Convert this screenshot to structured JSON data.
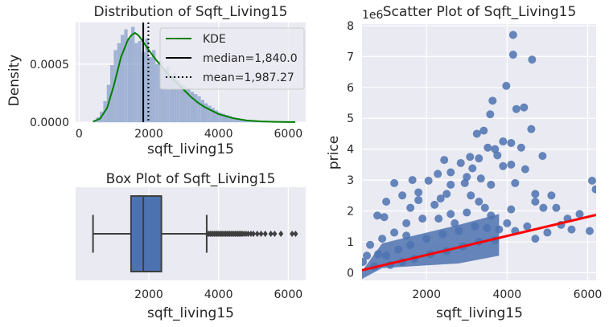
{
  "chart_data": [
    {
      "type": "histogram",
      "title": "Distribution of Sqft_Living15",
      "xlabel": "sqft_living15",
      "ylabel": "Density",
      "xlim": [
        -100,
        6500
      ],
      "ylim": [
        0,
        0.00086
      ],
      "x_ticks": [
        0,
        2000,
        4000,
        6000
      ],
      "x_tick_labels": [
        "0",
        "2000",
        "4000",
        "6000"
      ],
      "y_ticks": [
        0,
        0.0005
      ],
      "y_tick_labels": [
        "0.0000",
        "0.0005"
      ],
      "grid": true,
      "legend_position": "upper-right",
      "histogram": {
        "bin_start": 400,
        "bin_width": 100,
        "densities": [
          1e-05,
          4e-05,
          9e-05,
          0.00018,
          0.00032,
          0.00049,
          0.00062,
          0.00068,
          0.00075,
          0.0008,
          0.00072,
          0.00082,
          0.00068,
          0.0007,
          0.0006,
          0.00072,
          0.00056,
          0.00062,
          0.0005,
          0.00052,
          0.00046,
          0.00048,
          0.0004,
          0.00042,
          0.00036,
          0.00033,
          0.00031,
          0.00029,
          0.00026,
          0.00024,
          0.00022,
          0.00019,
          0.00016,
          0.00014,
          0.00012,
          0.0001,
          8e-05,
          7e-05,
          6e-05,
          5e-05,
          4e-05,
          3e-05,
          2.5e-05,
          2e-05,
          1.5e-05,
          1.2e-05,
          1e-05,
          8e-06,
          6e-06,
          5e-06
        ]
      },
      "kde": {
        "name": "KDE",
        "color": "#008000",
        "x": [
          400,
          600,
          800,
          1000,
          1200,
          1400,
          1500,
          1600,
          1700,
          1800,
          2000,
          2200,
          2400,
          2600,
          2800,
          3000,
          3200,
          3400,
          3600,
          3800,
          4000,
          4400,
          4800,
          5200,
          5600,
          6000,
          6200
        ],
        "y": [
          5e-06,
          3e-05,
          0.00012,
          0.00032,
          0.00056,
          0.00071,
          0.00075,
          0.00077,
          0.00075,
          0.00071,
          0.00062,
          0.00054,
          0.00047,
          0.0004,
          0.00034,
          0.00028,
          0.00022,
          0.00017,
          0.00013,
          0.0001,
          7e-05,
          3.5e-05,
          1.5e-05,
          6e-06,
          3e-06,
          1e-06,
          5e-07
        ]
      },
      "median": {
        "name": "median=1,840.0",
        "value": 1840,
        "color": "#000000"
      },
      "mean": {
        "name": "mean=1,987.27",
        "value": 1987.27,
        "color": "#000000"
      }
    },
    {
      "type": "box",
      "title": "Box Plot of Sqft_Living15",
      "xlabel": "sqft_living15",
      "xlim": [
        -100,
        6500
      ],
      "x_ticks": [
        2000,
        4000,
        6000
      ],
      "x_tick_labels": [
        "2000",
        "4000",
        "6000"
      ],
      "grid": true,
      "box_color": "#4c72b0",
      "whisker_low": 399,
      "q1": 1490,
      "median": 1840,
      "q3": 2360,
      "whisker_high": 3660,
      "outliers": [
        3680,
        3720,
        3760,
        3800,
        3840,
        3880,
        3920,
        3960,
        4000,
        4040,
        4080,
        4120,
        4160,
        4200,
        4240,
        4280,
        4320,
        4360,
        4400,
        4440,
        4480,
        4520,
        4560,
        4600,
        4640,
        4680,
        4730,
        4790,
        4850,
        4930,
        5000,
        5110,
        5220,
        5340,
        5500,
        5610,
        5790,
        6110,
        6210
      ]
    },
    {
      "type": "scatter",
      "title": "Scatter Plot of Sqft_Living15",
      "xlabel": "sqft_living15",
      "ylabel": "price",
      "offset_label": "1e6",
      "xlim": [
        399,
        6210
      ],
      "ylim": [
        -0.25,
        8.05
      ],
      "x_ticks": [
        2000,
        4000,
        6000
      ],
      "x_tick_labels": [
        "2000",
        "4000",
        "6000"
      ],
      "y_ticks": [
        0,
        1,
        2,
        3,
        4,
        5,
        6,
        7,
        8
      ],
      "y_tick_labels": [
        "0",
        "1",
        "2",
        "3",
        "4",
        "5",
        "6",
        "7",
        "8"
      ],
      "grid": true,
      "point_color": "#4c72b0",
      "points": [
        [
          4150,
          7.7
        ],
        [
          4150,
          7.06
        ],
        [
          4620,
          6.9
        ],
        [
          3980,
          6.05
        ],
        [
          3640,
          5.57
        ],
        [
          4420,
          5.35
        ],
        [
          4230,
          5.3
        ],
        [
          3580,
          5.13
        ],
        [
          4600,
          4.65
        ],
        [
          3250,
          4.5
        ],
        [
          3420,
          4.6
        ],
        [
          3900,
          4.25
        ],
        [
          3520,
          4.05
        ],
        [
          4100,
          4.2
        ],
        [
          3700,
          4.0
        ],
        [
          4350,
          4.05
        ],
        [
          4880,
          3.78
        ],
        [
          3080,
          3.75
        ],
        [
          3300,
          3.7
        ],
        [
          2440,
          3.65
        ],
        [
          3760,
          3.8
        ],
        [
          2850,
          3.55
        ],
        [
          3140,
          3.38
        ],
        [
          3900,
          3.45
        ],
        [
          4450,
          3.35
        ],
        [
          2600,
          3.25
        ],
        [
          2280,
          3.2
        ],
        [
          4100,
          3.5
        ],
        [
          3000,
          3.1
        ],
        [
          1650,
          3.0
        ],
        [
          2050,
          2.98
        ],
        [
          1200,
          2.9
        ],
        [
          6110,
          2.98
        ],
        [
          6200,
          2.7
        ],
        [
          5100,
          2.5
        ],
        [
          4700,
          2.55
        ],
        [
          4200,
          2.9
        ],
        [
          3600,
          2.85
        ],
        [
          2600,
          2.85
        ],
        [
          1800,
          2.6
        ],
        [
          1400,
          2.5
        ],
        [
          1000,
          2.3
        ],
        [
          5220,
          2.1
        ],
        [
          5800,
          1.9
        ],
        [
          5500,
          1.75
        ],
        [
          4900,
          2.1
        ],
        [
          4700,
          2.3
        ],
        [
          3300,
          2.3
        ],
        [
          2500,
          2.55
        ],
        [
          2200,
          2.2
        ],
        [
          1600,
          2.1
        ],
        [
          950,
          1.8
        ],
        [
          780,
          1.85
        ],
        [
          5340,
          1.55
        ],
        [
          6050,
          1.35
        ],
        [
          4700,
          1.1
        ],
        [
          4000,
          1.6
        ],
        [
          3600,
          1.85
        ],
        [
          3000,
          1.95
        ],
        [
          2700,
          1.6
        ],
        [
          2300,
          1.75
        ],
        [
          1900,
          1.75
        ],
        [
          1500,
          1.6
        ],
        [
          1200,
          1.3
        ],
        [
          900,
          1.1
        ],
        [
          600,
          0.9
        ],
        [
          420,
          0.35
        ],
        [
          520,
          0.55
        ],
        [
          800,
          0.6
        ],
        [
          1000,
          0.55
        ],
        [
          1300,
          0.75
        ],
        [
          1600,
          0.9
        ],
        [
          2000,
          1.1
        ],
        [
          2400,
          1.25
        ],
        [
          2800,
          1.35
        ],
        [
          3200,
          1.5
        ],
        [
          3500,
          1.45
        ],
        [
          3800,
          1.4
        ],
        [
          4200,
          1.35
        ],
        [
          4500,
          1.5
        ],
        [
          5000,
          1.3
        ],
        [
          5600,
          1.4
        ],
        [
          1100,
          0.25
        ],
        [
          1400,
          0.35
        ],
        [
          1700,
          0.45
        ],
        [
          2100,
          0.6
        ],
        [
          2500,
          0.7
        ],
        [
          2900,
          0.85
        ],
        [
          3300,
          1.0
        ],
        [
          3700,
          1.05
        ],
        [
          700,
          0.2
        ],
        [
          1500,
          1.2
        ],
        [
          2600,
          1.9
        ],
        [
          3100,
          2.5
        ],
        [
          3450,
          2.1
        ],
        [
          4100,
          2.05
        ],
        [
          2950,
          2.9
        ],
        [
          3350,
          3.05
        ],
        [
          1800,
          2.35
        ],
        [
          2350,
          2.4
        ]
      ],
      "dense_region": {
        "x": [
          900,
          2800,
          3800
        ],
        "y_low": [
          0.15,
          0.3,
          0.55
        ],
        "y_high": [
          0.95,
          1.55,
          1.9
        ]
      },
      "regression": {
        "x": [
          399,
          6210
        ],
        "y": [
          0.08,
          1.87
        ],
        "color": "#ff0000"
      }
    }
  ],
  "legend": [
    {
      "label": "KDE",
      "style": "solid-green"
    },
    {
      "label": "median=1,840.0",
      "style": "solid-black"
    },
    {
      "label": "mean=1,987.27",
      "style": "dotted-black"
    }
  ]
}
